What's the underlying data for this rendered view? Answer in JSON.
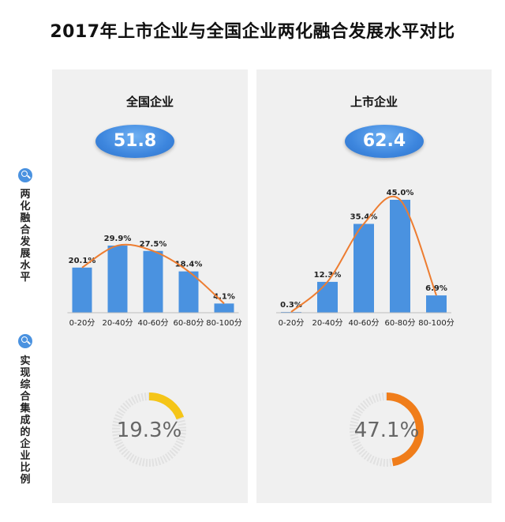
{
  "title": "2017年上市企业与全国企业两化融合发展水平对比",
  "side_labels": {
    "level": "两化融合发展水平",
    "integration": "实现综合集成的企业比例"
  },
  "colors": {
    "bar": "#4a92e0",
    "curve": "#ed7d31",
    "ring_left": "#f5c518",
    "ring_right": "#f07d1a",
    "ring_track": "#e1e1e1"
  },
  "chart_data": [
    {
      "type": "bar",
      "title": "全国企业",
      "score": "51.8",
      "categories": [
        "0-20分",
        "20-40分",
        "40-60分",
        "60-80分",
        "80-100分"
      ],
      "values": [
        20.1,
        29.9,
        27.5,
        18.4,
        4.1
      ],
      "labels": [
        "20.1%",
        "29.9%",
        "27.5%",
        "18.4%",
        "4.1%"
      ],
      "trend_curve": true,
      "integration_ratio": 19.3,
      "integration_label": "19.3%"
    },
    {
      "type": "bar",
      "title": "上市企业",
      "score": "62.4",
      "categories": [
        "0-20分",
        "20-40分",
        "40-60分",
        "60-80分",
        "80-100分"
      ],
      "values": [
        0.3,
        12.3,
        35.4,
        45.0,
        6.9
      ],
      "labels": [
        "0.3%",
        "12.3%",
        "35.4%",
        "45.0%",
        "6.9%"
      ],
      "trend_curve": true,
      "integration_ratio": 47.1,
      "integration_label": "47.1%"
    }
  ]
}
